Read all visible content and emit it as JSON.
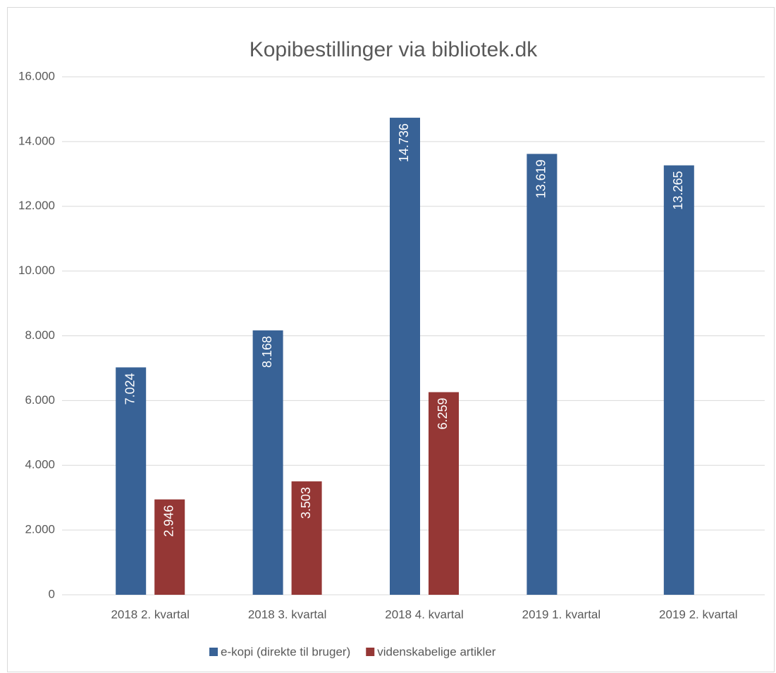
{
  "chart_data": {
    "type": "bar",
    "title": "Kopibestillinger via bibliotek.dk",
    "categories": [
      "2018 2. kvartal",
      "2018 3. kvartal",
      "2018 4. kvartal",
      "2019 1. kvartal",
      "2019 2. kvartal"
    ],
    "series": [
      {
        "name": "e-kopi (direkte til bruger)",
        "color": "#386296",
        "values": [
          7024,
          8168,
          14736,
          13619,
          13265
        ],
        "value_labels": [
          "7.024",
          "8.168",
          "14.736",
          "13.619",
          "13.265"
        ]
      },
      {
        "name": "videnskabelige artikler",
        "color": "#953735",
        "values": [
          2946,
          3503,
          6259,
          null,
          null
        ],
        "value_labels": [
          "2.946",
          "3.503",
          "6.259",
          null,
          null
        ]
      }
    ],
    "ylim": [
      0,
      16000
    ],
    "yticks": [
      0,
      {
        "value": 2000,
        "label": "2.000"
      },
      {
        "value": 4000,
        "label": "4.000"
      },
      {
        "value": 6000,
        "label": "6.000"
      },
      {
        "value": 8000,
        "label": "8.000"
      },
      {
        "value": 10000,
        "label": "10.000"
      },
      {
        "value": 12000,
        "label": "12.000"
      },
      {
        "value": 14000,
        "label": "14.000"
      },
      {
        "value": 16000,
        "label": "16.000"
      }
    ],
    "grid": true,
    "legend": "bottom"
  }
}
